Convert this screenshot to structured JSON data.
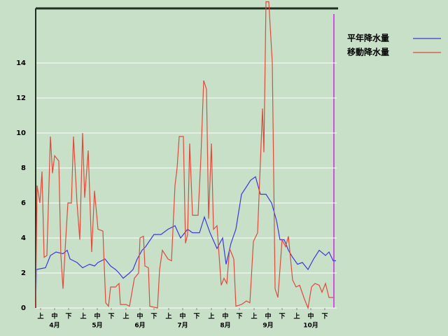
{
  "chart_data": {
    "type": "line",
    "xlim": [
      0,
      215
    ],
    "ylim": [
      0,
      17.12
    ],
    "yticks": [
      0,
      2,
      4,
      6,
      8,
      10,
      12,
      14
    ],
    "grid": true,
    "legend": "upper right",
    "xticks": [
      {
        "value": 3.5,
        "label": "上"
      },
      {
        "value": 13.5,
        "label": "中"
      },
      {
        "value": 23.5,
        "label": "下"
      },
      {
        "value": 34,
        "label": "上"
      },
      {
        "value": 44,
        "label": "中"
      },
      {
        "value": 54,
        "label": "下"
      },
      {
        "value": 64.5,
        "label": "上"
      },
      {
        "value": 74.5,
        "label": "中"
      },
      {
        "value": 84.5,
        "label": "下"
      },
      {
        "value": 95,
        "label": "上"
      },
      {
        "value": 105,
        "label": "中"
      },
      {
        "value": 115,
        "label": "下"
      },
      {
        "value": 125.5,
        "label": "上"
      },
      {
        "value": 135.5,
        "label": "中"
      },
      {
        "value": 145.5,
        "label": "下"
      },
      {
        "value": 156,
        "label": "上"
      },
      {
        "value": 166,
        "label": "中"
      },
      {
        "value": 176,
        "label": "下"
      },
      {
        "value": 186.5,
        "label": "上"
      },
      {
        "value": 196.5,
        "label": "中"
      },
      {
        "value": 206.5,
        "label": "下"
      }
    ],
    "month_labels": [
      {
        "value": 13.5,
        "label": "4月"
      },
      {
        "value": 44,
        "label": "5月"
      },
      {
        "value": 74.5,
        "label": "6月"
      },
      {
        "value": 105,
        "label": "7月"
      },
      {
        "value": 135.5,
        "label": "8月"
      },
      {
        "value": 166,
        "label": "9月"
      },
      {
        "value": 196.5,
        "label": "10月"
      }
    ],
    "series": [
      {
        "name": "平年降水量",
        "color": "#3a3ad8",
        "x": [
          0,
          0.5,
          7,
          10.5,
          14.5,
          19.5,
          22.5,
          24.5,
          29.5,
          33.5,
          38.5,
          42,
          44.5,
          49.5,
          53.5,
          57,
          59.5,
          62.5,
          67,
          69.5,
          72.5,
          76,
          78.5,
          81,
          84.5,
          89.5,
          94.5,
          99.5,
          103.5,
          108.5,
          112,
          117,
          120.5,
          124.5,
          129.5,
          133.5,
          136,
          139.5,
          143,
          147,
          149.5,
          153.5,
          157,
          160.5,
          164.5,
          168.5,
          172,
          174.5,
          177.5,
          180.5,
          183.5,
          187,
          190.5,
          194.5,
          198.5,
          202.5,
          207,
          209.5,
          212.5,
          214.5
        ],
        "values": [
          0,
          2.2,
          2.3,
          3.0,
          3.2,
          3.1,
          3.3,
          2.8,
          2.6,
          2.3,
          2.5,
          2.4,
          2.6,
          2.8,
          2.4,
          2.2,
          2.0,
          1.7,
          2.0,
          2.2,
          2.8,
          3.3,
          3.5,
          3.8,
          4.2,
          4.2,
          4.5,
          4.7,
          4.0,
          4.5,
          4.3,
          4.3,
          5.2,
          4.3,
          3.4,
          4.0,
          2.5,
          3.7,
          4.5,
          6.5,
          6.8,
          7.3,
          7.5,
          6.5,
          6.5,
          6.0,
          5.0,
          3.9,
          3.9,
          3.3,
          2.9,
          2.5,
          2.6,
          2.2,
          2.8,
          3.3,
          3.0,
          3.2,
          2.7,
          2.7
        ]
      },
      {
        "name": "移動降水量",
        "color": "#e04a3a",
        "x": [
          0,
          1,
          3,
          4.5,
          6,
          8,
          10.5,
          12,
          13.5,
          16.5,
          18,
          19.5,
          21.5,
          23,
          25.5,
          27,
          29.5,
          31.5,
          33.5,
          35,
          37.5,
          40,
          42,
          44.5,
          48,
          50,
          52,
          53.5,
          57,
          59.5,
          60.5,
          64.5,
          67,
          70.5,
          73.5,
          74.5,
          77,
          78,
          80.5,
          81.5,
          87,
          88.5,
          90.5,
          94.5,
          97,
          99.5,
          101,
          102.5,
          105.5,
          107,
          108.5,
          110,
          112,
          116,
          118,
          120,
          122,
          123.5,
          125.5,
          127,
          129.5,
          132.5,
          134.5,
          136.5,
          138.5,
          141.5,
          143,
          147,
          150.5,
          153,
          155.5,
          158.5,
          162,
          163,
          164.5,
          166.5,
          169,
          171,
          173,
          176,
          178.5,
          180.5,
          183.5,
          186,
          188.5,
          192,
          194.5,
          197,
          199.5,
          202.5,
          204.5,
          207,
          209.5,
          212.5
        ],
        "values": [
          0,
          7,
          6,
          7.8,
          2.9,
          3,
          9.8,
          7.7,
          8.7,
          8.4,
          3,
          1.1,
          4,
          6,
          6,
          9.8,
          6,
          3.9,
          10,
          6.3,
          9,
          3.2,
          6.7,
          4.5,
          4.4,
          0.3,
          0.1,
          1.2,
          1.2,
          1.4,
          0.2,
          0.2,
          0.1,
          1.7,
          2,
          4,
          4.1,
          2.4,
          2.3,
          0.1,
          0,
          2.2,
          3.3,
          2.8,
          2.7,
          7,
          8,
          9.8,
          9.8,
          3.7,
          4.2,
          9.4,
          5.3,
          5.3,
          8.6,
          13,
          12.5,
          5.1,
          9.4,
          4.5,
          4.7,
          1.3,
          1.7,
          1.4,
          3.4,
          2.8,
          0.1,
          0.2,
          0.4,
          0.3,
          3.8,
          4.3,
          11.4,
          8.9,
          17.5,
          17.5,
          14,
          1.1,
          0.6,
          3.9,
          3.5,
          4.1,
          1.6,
          1.2,
          1.3,
          0.5,
          0,
          1.2,
          1.4,
          1.3,
          0.9,
          1.4,
          0.6,
          0.6
        ]
      }
    ]
  }
}
